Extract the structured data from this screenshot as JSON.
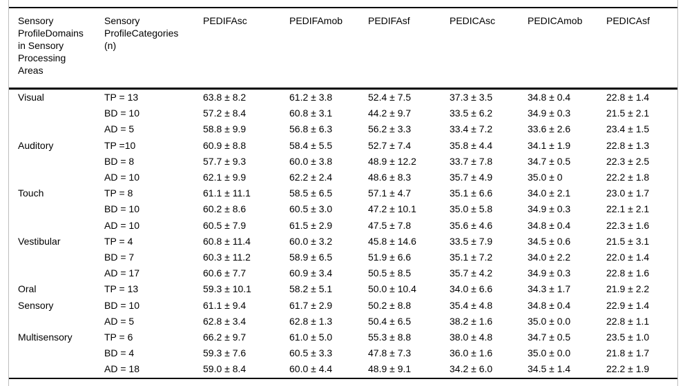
{
  "table": {
    "headers": [
      "Sensory\nProfileDomains\nin Sensory\nProcessing\nAreas",
      "Sensory\nProfileCategories\n(n)",
      "PEDIFAsc",
      "PEDIFAmob",
      "PEDIFAsf",
      "PEDICAsc",
      "PEDICAmob",
      "PEDICAsf"
    ],
    "rows": [
      {
        "domain": "Visual",
        "category": "TP = 13",
        "values": [
          "63.8 ± 8.2",
          "61.2 ± 3.8",
          "52.4 ± 7.5",
          "37.3 ± 3.5",
          "34.8 ± 0.4",
          "22.8 ± 1.4"
        ]
      },
      {
        "domain": "",
        "category": "BD = 10",
        "values": [
          "57.2 ± 8.4",
          "60.8 ± 3.1",
          "44.2 ± 9.7",
          "33.5 ± 6.2",
          "34.9 ± 0.3",
          "21.5 ± 2.1"
        ]
      },
      {
        "domain": "",
        "category": "AD = 5",
        "values": [
          "58.8 ± 9.9",
          "56.8 ± 6.3",
          "56.2 ± 3.3",
          "33.4 ± 7.2",
          "33.6 ± 2.6",
          "23.4 ± 1.5"
        ]
      },
      {
        "domain": "Auditory",
        "category": "TP =10",
        "values": [
          "60.9 ± 8.8",
          "58.4 ± 5.5",
          "52.7 ± 7.4",
          "35.8 ± 4.4",
          "34.1 ± 1.9",
          "22.8 ± 1.3"
        ]
      },
      {
        "domain": "",
        "category": "BD = 8",
        "values": [
          "57.7 ± 9.3",
          "60.0 ± 3.8",
          "48.9 ± 12.2",
          "33.7 ± 7.8",
          "34.7 ± 0.5",
          "22.3 ± 2.5"
        ]
      },
      {
        "domain": "",
        "category": "AD = 10",
        "values": [
          "62.1 ± 9.9",
          "62.2 ± 2.4",
          "48.6 ± 8.3",
          "35.7 ± 4.9",
          "35.0 ± 0",
          "22.2 ± 1.8"
        ]
      },
      {
        "domain": "Touch",
        "category": "TP = 8",
        "values": [
          "61.1 ± 11.1",
          "58.5 ± 6.5",
          "57.1 ± 4.7",
          "35.1 ± 6.6",
          "34.0 ± 2.1",
          "23.0 ± 1.7"
        ]
      },
      {
        "domain": "",
        "category": "BD = 10",
        "values": [
          "60.2 ± 8.6",
          "60.5 ± 3.0",
          "47.2 ± 10.1",
          "35.0 ± 5.8",
          "34.9 ± 0.3",
          "22.1 ± 2.1"
        ]
      },
      {
        "domain": "",
        "category": "AD = 10",
        "values": [
          "60.5 ± 7.9",
          "61.5 ± 2.9",
          "47.5 ± 7.8",
          "35.6 ± 4.6",
          "34.8 ± 0.4",
          "22.3 ± 1.6"
        ]
      },
      {
        "domain": "Vestibular",
        "category": "TP = 4",
        "values": [
          "60.8 ± 11.4",
          "60.0 ± 3.2",
          "45.8 ± 14.6",
          "33.5 ± 7.9",
          "34.5 ± 0.6",
          "21.5 ± 3.1"
        ]
      },
      {
        "domain": "",
        "category": "BD = 7",
        "values": [
          "60.3 ± 11.2",
          "58.9 ± 6.5",
          "51.9 ± 6.6",
          "35.1 ± 7.2",
          "34.0 ± 2.2",
          "22.0 ± 1.4"
        ]
      },
      {
        "domain": "",
        "category": "AD = 17",
        "values": [
          "60.6 ± 7.7",
          "60.9 ± 3.4",
          "50.5 ± 8.5",
          "35.7 ± 4.2",
          "34.9 ± 0.3",
          "22.8 ± 1.6"
        ]
      },
      {
        "domain": "Oral",
        "category": "TP = 13",
        "values": [
          "59.3 ± 10.1",
          "58.2 ± 5.1",
          "50.0 ± 10.4",
          "34.0 ± 6.6",
          "34.3 ± 1.7",
          "21.9 ± 2.2"
        ]
      },
      {
        "domain": "Sensory",
        "category": "BD = 10",
        "values": [
          "61.1 ± 9.4",
          "61.7 ± 2.9",
          "50.2 ± 8.8",
          "35.4 ± 4.8",
          "34.8 ± 0.4",
          "22.9 ± 1.4"
        ]
      },
      {
        "domain": "",
        "category": "AD = 5",
        "values": [
          "62.8 ± 3.4",
          "62.8 ± 1.3",
          "50.4 ± 6.5",
          "38.2 ± 1.6",
          "35.0 ± 0.0",
          "22.8 ± 1.1"
        ]
      },
      {
        "domain": "Multisensory",
        "category": "TP = 6",
        "values": [
          "66.2 ± 9.7",
          "61.0 ± 5.0",
          "55.3 ± 8.8",
          "38.0 ± 4.8",
          "34.7 ± 0.5",
          "23.5 ± 1.0"
        ]
      },
      {
        "domain": "",
        "category": "BD = 4",
        "values": [
          "59.3 ± 7.6",
          "60.5 ± 3.3",
          "47.8 ± 7.3",
          "36.0 ± 1.6",
          "35.0 ± 0.0",
          "21.8 ± 1.7"
        ]
      },
      {
        "domain": "",
        "category": "AD = 18",
        "values": [
          "59.0 ± 8.4",
          "60.0 ± 4.4",
          "48.9 ± 9.1",
          "34.2 ± 6.0",
          "34.5 ± 1.4",
          "22.2 ± 1.9"
        ]
      }
    ],
    "colors": {
      "rule_color": "#000000",
      "frame_border_color": "#bdbdbd",
      "background": "#ffffff",
      "text": "#000000"
    }
  }
}
